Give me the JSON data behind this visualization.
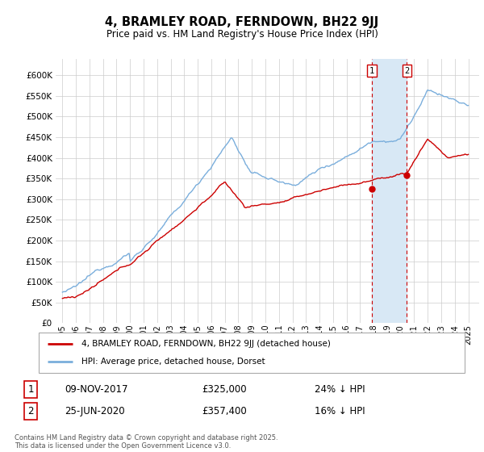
{
  "title": "4, BRAMLEY ROAD, FERNDOWN, BH22 9JJ",
  "subtitle": "Price paid vs. HM Land Registry's House Price Index (HPI)",
  "legend_label_red": "4, BRAMLEY ROAD, FERNDOWN, BH22 9JJ (detached house)",
  "legend_label_blue": "HPI: Average price, detached house, Dorset",
  "transaction1_date": "09-NOV-2017",
  "transaction1_price": "£325,000",
  "transaction1_hpi": "24% ↓ HPI",
  "transaction2_date": "25-JUN-2020",
  "transaction2_price": "£357,400",
  "transaction2_hpi": "16% ↓ HPI",
  "copyright": "Contains HM Land Registry data © Crown copyright and database right 2025.\nThis data is licensed under the Open Government Licence v3.0.",
  "yticks": [
    0,
    50000,
    100000,
    150000,
    200000,
    250000,
    300000,
    350000,
    400000,
    450000,
    500000,
    550000,
    600000
  ],
  "red_color": "#cc0000",
  "blue_color": "#7aaedc",
  "shade_color": "#d8e8f5",
  "vline_color": "#cc0000",
  "background_color": "#ffffff",
  "grid_color": "#cccccc",
  "t1_x": 2017.87,
  "t2_x": 2020.46,
  "t1_y": 325000,
  "t2_y": 357400,
  "xlim_left": 1994.5,
  "xlim_right": 2025.8,
  "ylim_top": 640000
}
